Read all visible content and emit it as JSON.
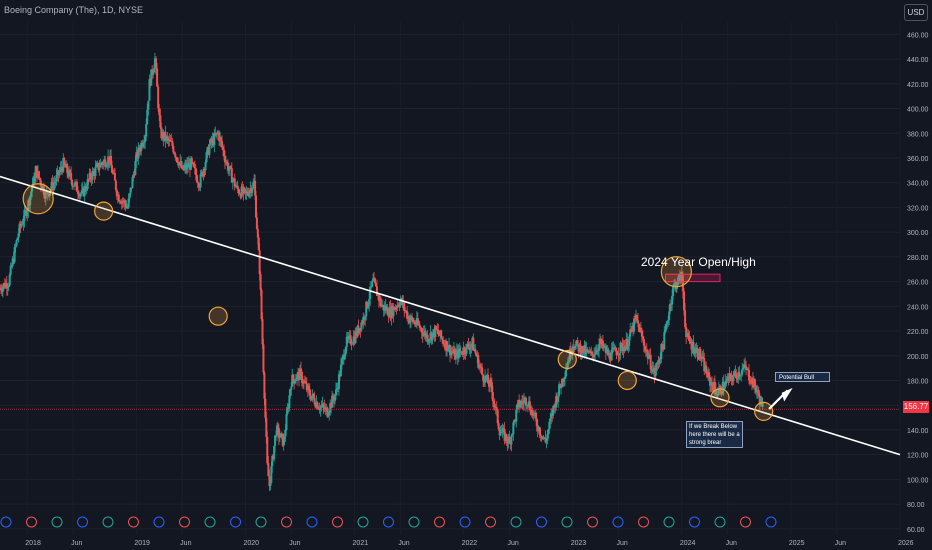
{
  "header": {
    "symbol_title": "Boeing Company (The), 1D, NYSE",
    "currency": "USD"
  },
  "colors": {
    "up": "#26a69a",
    "down": "#ef5350",
    "trendline": "#ffffff",
    "circle": "#f2a33a",
    "price_line": "#f23645"
  },
  "last_price": "156.77",
  "annotations": {
    "title": "2024 Year Open/High",
    "bull": "Potential Bull",
    "break_below": "If we Break Below here there will be a strong brear"
  },
  "chart_data": {
    "type": "candlestick",
    "x_ticks": [
      "2018",
      "Jun",
      "2019",
      "Jun",
      "2020",
      "Jun",
      "2021",
      "Jun",
      "2022",
      "Jun",
      "2023",
      "Jun",
      "2024",
      "Jun",
      "2025",
      "Jun",
      "2026"
    ],
    "y_ticks": [
      "60.00",
      "80.00",
      "100.00",
      "120.00",
      "140.00",
      "160.00",
      "180.00",
      "200.00",
      "220.00",
      "240.00",
      "260.00",
      "280.00",
      "300.00",
      "320.00",
      "340.00",
      "360.00",
      "380.00",
      "400.00",
      "420.00",
      "440.00",
      "460.00"
    ],
    "ylim": [
      55,
      470
    ],
    "xlim": [
      2017.75,
      2026.0
    ],
    "price_series": [
      [
        2017.75,
        255
      ],
      [
        2017.83,
        260
      ],
      [
        2017.92,
        300
      ],
      [
        2018.0,
        320
      ],
      [
        2018.08,
        350
      ],
      [
        2018.17,
        330
      ],
      [
        2018.25,
        340
      ],
      [
        2018.33,
        355
      ],
      [
        2018.42,
        340
      ],
      [
        2018.5,
        330
      ],
      [
        2018.58,
        345
      ],
      [
        2018.67,
        355
      ],
      [
        2018.75,
        360
      ],
      [
        2018.83,
        330
      ],
      [
        2018.92,
        320
      ],
      [
        2019.0,
        360
      ],
      [
        2019.08,
        380
      ],
      [
        2019.12,
        420
      ],
      [
        2019.17,
        440
      ],
      [
        2019.22,
        380
      ],
      [
        2019.33,
        370
      ],
      [
        2019.42,
        350
      ],
      [
        2019.5,
        355
      ],
      [
        2019.58,
        340
      ],
      [
        2019.67,
        370
      ],
      [
        2019.75,
        380
      ],
      [
        2019.83,
        355
      ],
      [
        2019.92,
        335
      ],
      [
        2020.0,
        330
      ],
      [
        2020.08,
        340
      ],
      [
        2020.13,
        270
      ],
      [
        2020.2,
        110
      ],
      [
        2020.22,
        95
      ],
      [
        2020.28,
        140
      ],
      [
        2020.35,
        130
      ],
      [
        2020.42,
        180
      ],
      [
        2020.5,
        185
      ],
      [
        2020.58,
        170
      ],
      [
        2020.67,
        160
      ],
      [
        2020.75,
        155
      ],
      [
        2020.83,
        170
      ],
      [
        2020.92,
        210
      ],
      [
        2021.0,
        215
      ],
      [
        2021.08,
        230
      ],
      [
        2021.17,
        260
      ],
      [
        2021.25,
        240
      ],
      [
        2021.33,
        235
      ],
      [
        2021.42,
        245
      ],
      [
        2021.5,
        230
      ],
      [
        2021.58,
        225
      ],
      [
        2021.67,
        215
      ],
      [
        2021.75,
        220
      ],
      [
        2021.83,
        210
      ],
      [
        2021.92,
        200
      ],
      [
        2022.0,
        205
      ],
      [
        2022.08,
        210
      ],
      [
        2022.17,
        185
      ],
      [
        2022.25,
        175
      ],
      [
        2022.33,
        140
      ],
      [
        2022.42,
        130
      ],
      [
        2022.5,
        160
      ],
      [
        2022.58,
        165
      ],
      [
        2022.67,
        145
      ],
      [
        2022.75,
        130
      ],
      [
        2022.83,
        160
      ],
      [
        2022.92,
        185
      ],
      [
        2023.0,
        210
      ],
      [
        2023.08,
        205
      ],
      [
        2023.17,
        200
      ],
      [
        2023.25,
        210
      ],
      [
        2023.33,
        200
      ],
      [
        2023.42,
        205
      ],
      [
        2023.5,
        210
      ],
      [
        2023.58,
        230
      ],
      [
        2023.67,
        205
      ],
      [
        2023.75,
        185
      ],
      [
        2023.83,
        210
      ],
      [
        2023.92,
        255
      ],
      [
        2024.0,
        265
      ],
      [
        2024.04,
        215
      ],
      [
        2024.08,
        210
      ],
      [
        2024.17,
        200
      ],
      [
        2024.25,
        180
      ],
      [
        2024.33,
        170
      ],
      [
        2024.42,
        180
      ],
      [
        2024.5,
        185
      ],
      [
        2024.58,
        190
      ],
      [
        2024.67,
        175
      ],
      [
        2024.75,
        157
      ]
    ],
    "trendline": {
      "start": [
        2017.75,
        345
      ],
      "end": [
        2026.0,
        120
      ]
    },
    "circled_touches": [
      [
        2018.1,
        327
      ],
      [
        2018.7,
        317
      ],
      [
        2019.75,
        232
      ],
      [
        2022.95,
        197
      ],
      [
        2023.5,
        180
      ],
      [
        2023.95,
        268
      ],
      [
        2024.35,
        166
      ],
      [
        2024.75,
        155
      ]
    ],
    "highlight_box": {
      "label": "2024 Year Open/High",
      "y_range": [
        260,
        266
      ]
    },
    "price_line": 156.77
  }
}
